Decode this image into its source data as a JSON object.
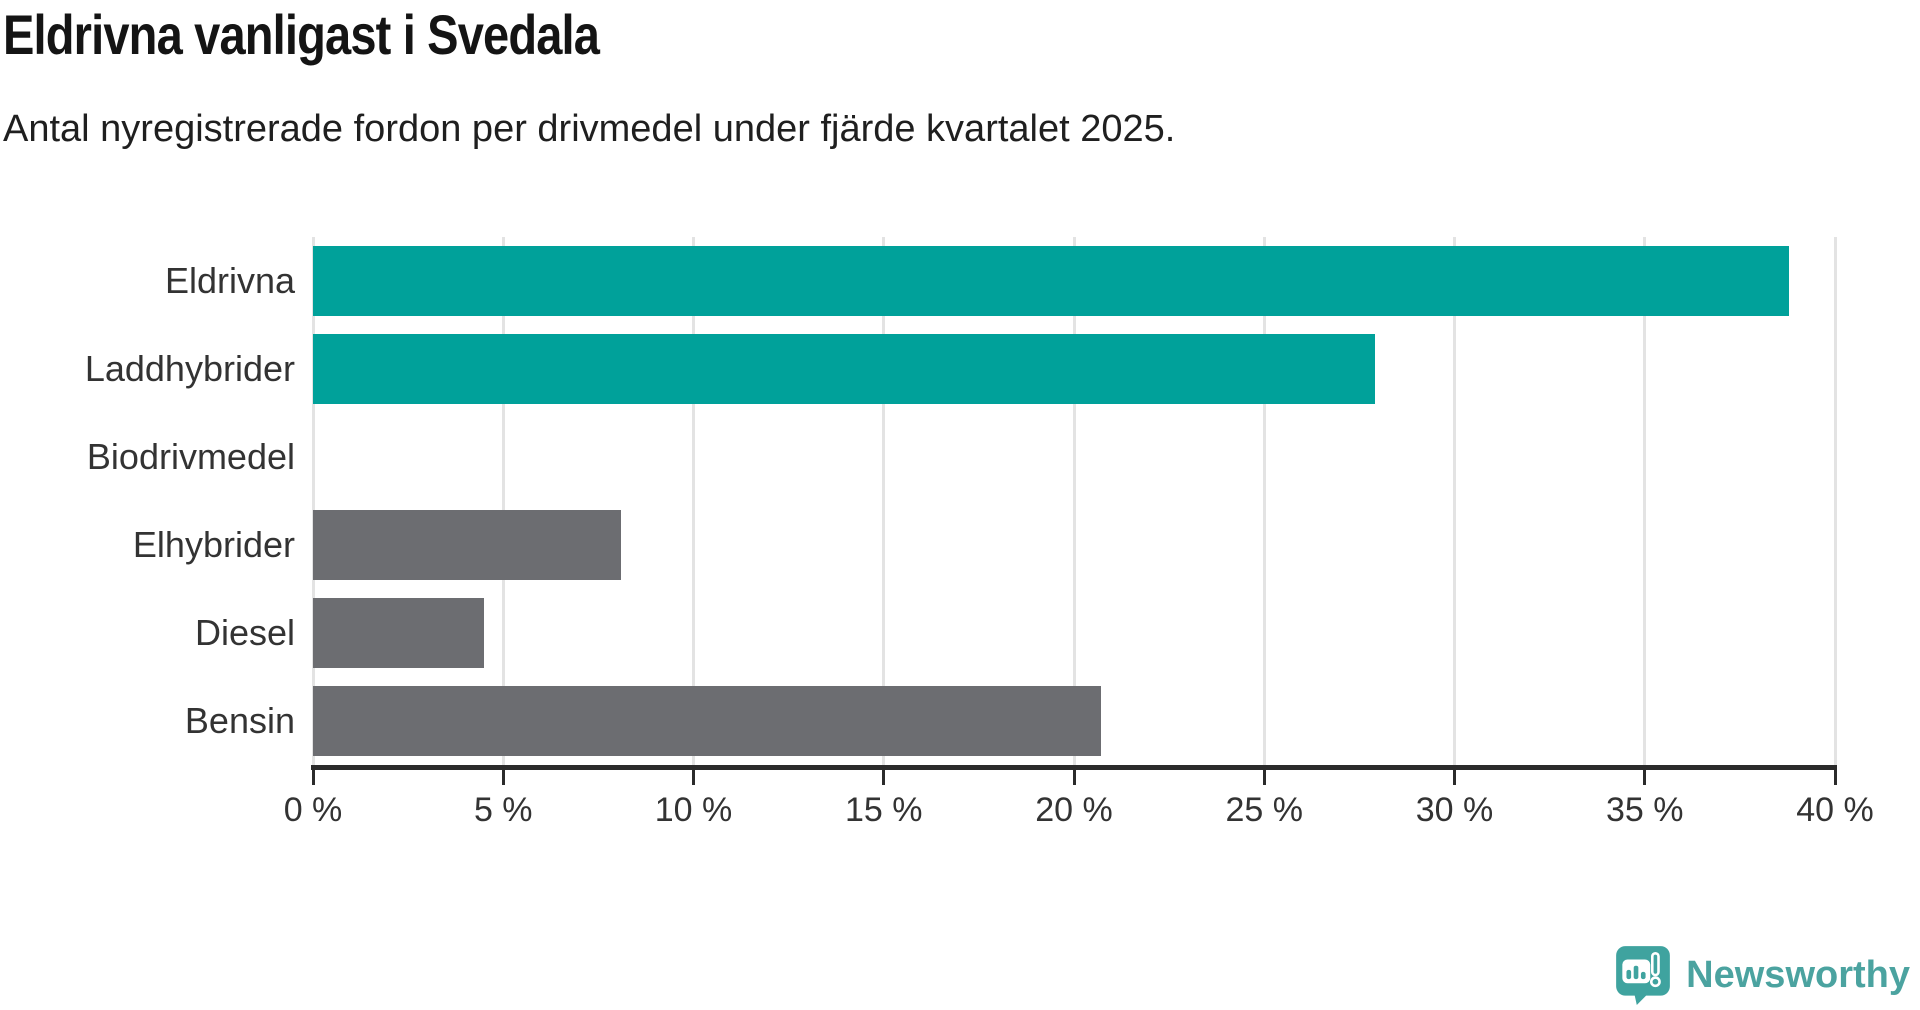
{
  "header": {
    "title": "Eldrivna vanligast i Svedala",
    "subtitle": "Antal nyregistrerade fordon per drivmedel under fjärde kvartalet 2025."
  },
  "chart_data": {
    "type": "bar",
    "orientation": "horizontal",
    "title": "Eldrivna vanligast i Svedala",
    "subtitle": "Antal nyregistrerade fordon per drivmedel under fjärde kvartalet 2025.",
    "categories": [
      "Eldrivna",
      "Laddhybrider",
      "Biodrivmedel",
      "Elhybrider",
      "Diesel",
      "Bensin"
    ],
    "values": [
      38.8,
      27.9,
      0,
      8.1,
      4.5,
      20.7
    ],
    "unit": "%",
    "bar_colors": [
      "#00a19a",
      "#00a19a",
      "#6c6d71",
      "#6c6d71",
      "#6c6d71",
      "#6c6d71"
    ],
    "xlim": [
      0,
      40
    ],
    "x_tick_step": 5,
    "x_tick_labels": [
      "0 %",
      "5 %",
      "10 %",
      "15 %",
      "20 %",
      "25 %",
      "30 %",
      "35 %",
      "40 %"
    ],
    "grid": true,
    "legend": false
  },
  "colors": {
    "accent_teal": "#00a19a",
    "neutral_gray": "#6c6d71",
    "gridline": "#e3e3e3",
    "axis": "#2b2b2b",
    "label_text": "#333333",
    "logo_teal": "#4ba3a0"
  },
  "footer": {
    "brand": "Newsworthy"
  },
  "icons": {
    "logo": "newsworthy-speech-bubble-chart-icon"
  }
}
